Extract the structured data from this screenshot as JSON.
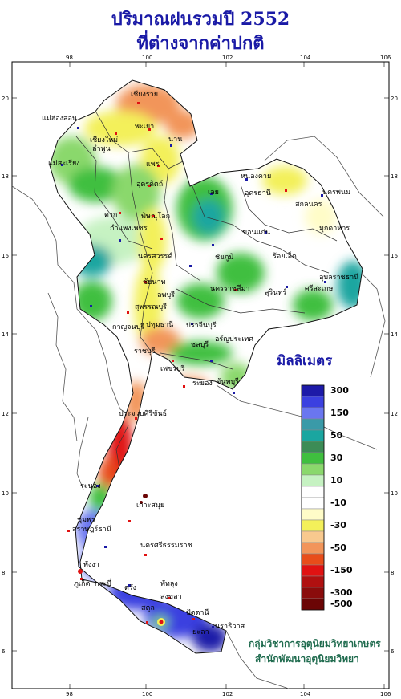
{
  "title": {
    "line1": "ปริมาณฝนรวมปี  2552",
    "line2": "ที่ต่างจากค่าปกติ"
  },
  "legend": {
    "unit": "มิลลิเมตร",
    "bins": [
      {
        "label": "300",
        "color": "#1d1aa8"
      },
      {
        "label": "",
        "color": "#3b40e0"
      },
      {
        "label": "150",
        "color": "#6a76f0"
      },
      {
        "label": "",
        "color": "#3a9aa8"
      },
      {
        "label": "50",
        "color": "#1aa6a0"
      },
      {
        "label": "",
        "color": "#3c8c56"
      },
      {
        "label": "30",
        "color": "#3fbf3f"
      },
      {
        "label": "",
        "color": "#8ad86c"
      },
      {
        "label": "10",
        "color": "#c6f2c2"
      },
      {
        "label": "",
        "color": "#ffffff"
      },
      {
        "label": "-10",
        "color": "#ffffff"
      },
      {
        "label": "",
        "color": "#fffcc8"
      },
      {
        "label": "-30",
        "color": "#f3f05a"
      },
      {
        "label": "",
        "color": "#f8c98e"
      },
      {
        "label": "-50",
        "color": "#f2955a"
      },
      {
        "label": "",
        "color": "#e84d1a"
      },
      {
        "label": "-150",
        "color": "#e01212"
      },
      {
        "label": "",
        "color": "#b01010"
      },
      {
        "label": "-300",
        "color": "#8a0c0c"
      },
      {
        "label": "-500",
        "color": "#6b0505"
      }
    ]
  },
  "axes": {
    "lon_ticks": [
      "98",
      "100",
      "102",
      "104",
      "106"
    ],
    "lat_ticks": [
      "20",
      "18",
      "16",
      "14",
      "12",
      "10",
      "8",
      "6"
    ]
  },
  "places": [
    "เชียงราย",
    "แม่ฮ่องสอน",
    "เชียงใหม่",
    "ลำพูน",
    "พะเยา",
    "น่าน",
    "แพร่",
    "แม่สะเรียง",
    "อุตรดิตถ์",
    "หนองคาย",
    "อุดรธานี",
    "นครพนม",
    "สกลนคร",
    "มุกดาหาร",
    "ตาก",
    "พิษณุโลก",
    "เลย",
    "ขอนแก่น",
    "กำแพงเพชร",
    "นครสวรรค์",
    "ชัยภูมิ",
    "ร้อยเอ็ด",
    "อุบลราชธานี",
    "ชัยนาท",
    "ลพบุรี",
    "นครราชสีมา",
    "สุรินทร์",
    "ศรีสะเกษ",
    "สุพรรณบุรี",
    "กาญจนบุรี",
    "ปทุมธานี",
    "ปราจีนบุรี",
    "อรัญประเทศ",
    "ราชบุรี",
    "ชลบุรี",
    "ระยอง",
    "จันทบุรี",
    "เพชรบุรี",
    "ประจวบคีรีขันธ์",
    "ระนอง",
    "เกาะสมุย",
    "สุราษฎร์ธานี",
    "ชุมพร",
    "นครศรีธรรมราช",
    "พังงา",
    "ภูเก็ต",
    "กระบี่",
    "ตรัง",
    "พัทลุง",
    "สงขลา",
    "ปัตตานี",
    "นราธิวาส",
    "ยะลา",
    "สตูล"
  ],
  "credits": {
    "line1": "กลุ่มวิชาการอุตุนิยมวิทยาเกษตร",
    "line2": "สำนักพัฒนาอุตุนิยมวิทยา"
  }
}
